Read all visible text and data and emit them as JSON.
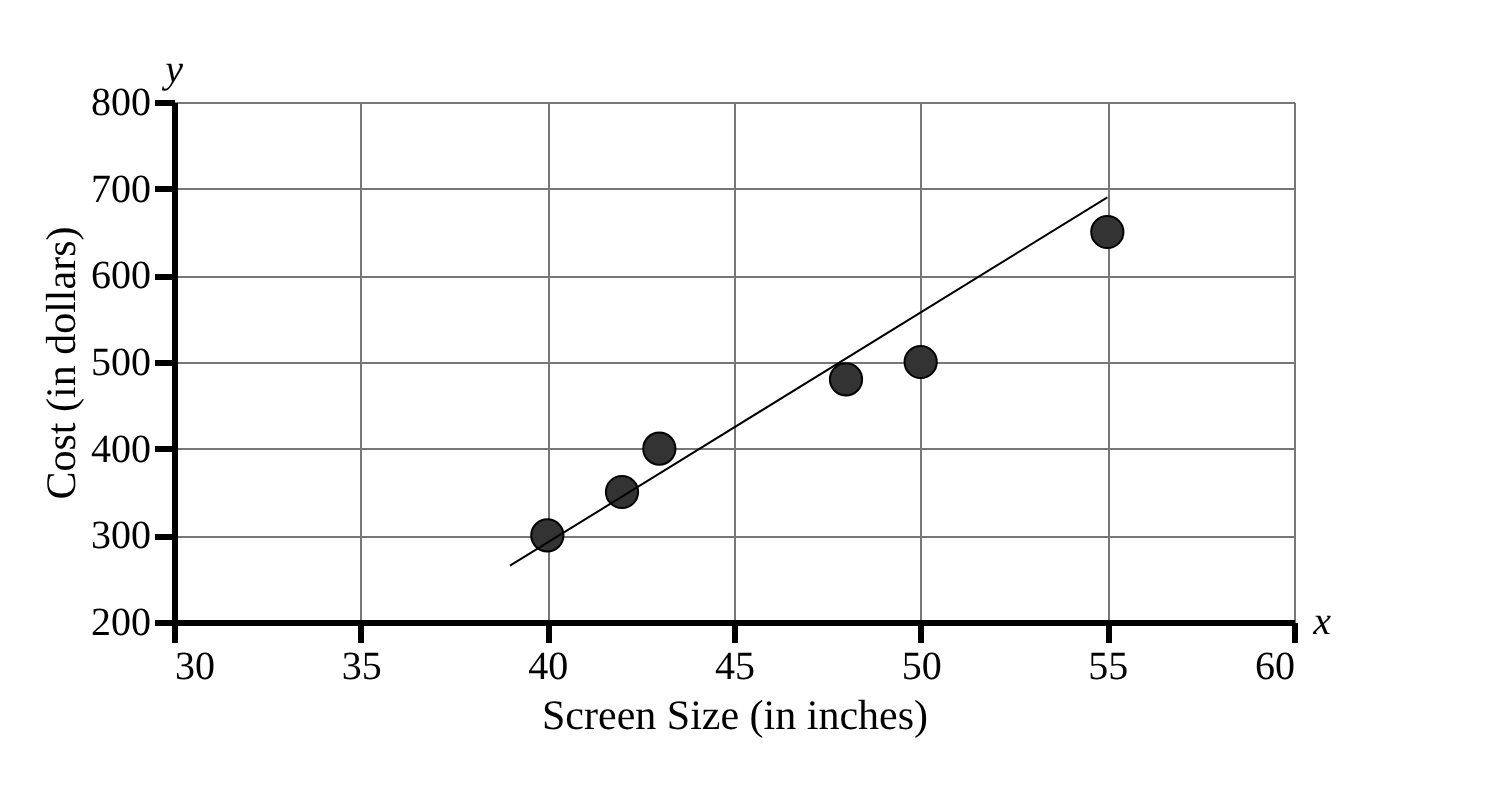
{
  "chart_data": {
    "type": "scatter",
    "xlabel": "Screen Size (in inches)",
    "ylabel": "Cost (in dollars)",
    "annotations": [
      "x",
      "y"
    ],
    "xlim": [
      30,
      60
    ],
    "ylim": [
      200,
      800
    ],
    "xticks": [
      30,
      35,
      40,
      45,
      50,
      55,
      60
    ],
    "yticks": [
      200,
      300,
      400,
      500,
      600,
      700,
      800
    ],
    "grid": true,
    "series": [
      {
        "marker": "circle",
        "color": "#333333",
        "x": [
          40,
          42,
          43,
          48,
          50,
          55
        ],
        "values": [
          300,
          350,
          400,
          480,
          500,
          650
        ]
      },
      {
        "type": "line",
        "marker": "none",
        "color": "#000000",
        "x": [
          39,
          55
        ],
        "values": [
          265,
          690
        ]
      }
    ]
  }
}
